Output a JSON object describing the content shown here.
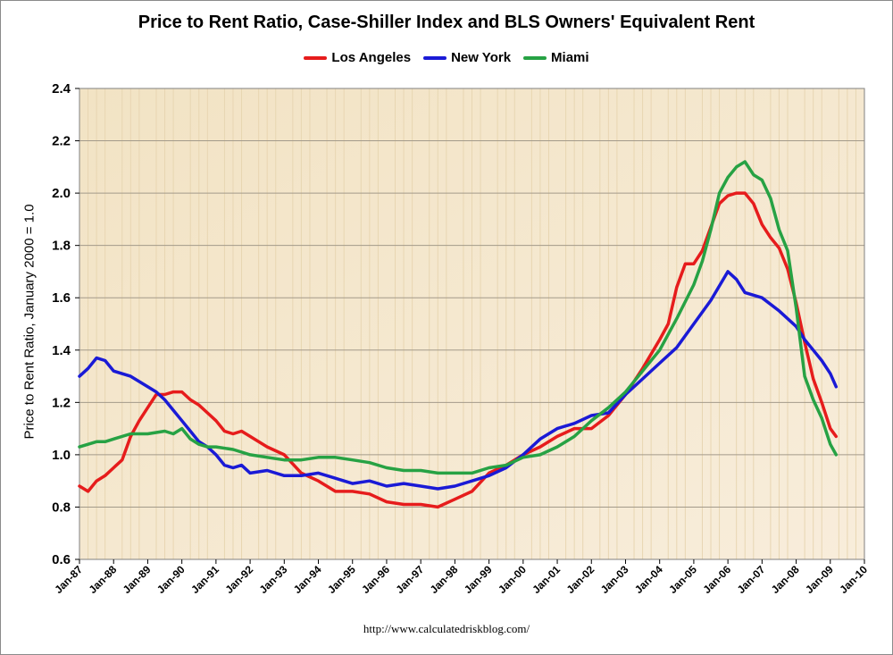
{
  "chart_data": {
    "type": "line",
    "title": "Price to Rent Ratio, Case-Shiller Index and BLS Owners' Equivalent Rent",
    "xlabel": "",
    "ylabel": "Price to Rent Ratio, January 2000 = 1.0",
    "ylim": [
      0.6,
      2.4
    ],
    "yticks": [
      "0.6",
      "0.8",
      "1.0",
      "1.2",
      "1.4",
      "1.6",
      "1.8",
      "2.0",
      "2.2",
      "2.4"
    ],
    "yticks_values": [
      0.6,
      0.8,
      1.0,
      1.2,
      1.4,
      1.6,
      1.8,
      2.0,
      2.2,
      2.4
    ],
    "xlim": [
      1987,
      2010
    ],
    "categories": [
      "Jan-87",
      "Jan-88",
      "Jan-89",
      "Jan-90",
      "Jan-91",
      "Jan-92",
      "Jan-93",
      "Jan-94",
      "Jan-95",
      "Jan-96",
      "Jan-97",
      "Jan-98",
      "Jan-99",
      "Jan-00",
      "Jan-01",
      "Jan-02",
      "Jan-03",
      "Jan-04",
      "Jan-05",
      "Jan-06",
      "Jan-07",
      "Jan-08",
      "Jan-09",
      "Jan-10"
    ],
    "grid": true,
    "legend_position": "top",
    "source": "http://www.calculatedriskblog.com/",
    "series": [
      {
        "name": "Los Angeles",
        "color": "#e61c1c",
        "x": [
          1987.0,
          1987.25,
          1987.5,
          1987.75,
          1988.0,
          1988.25,
          1988.5,
          1988.75,
          1989.0,
          1989.25,
          1989.5,
          1989.75,
          1990.0,
          1990.25,
          1990.5,
          1990.75,
          1991.0,
          1991.25,
          1991.5,
          1991.75,
          1992.0,
          1992.5,
          1993.0,
          1993.5,
          1994.0,
          1994.5,
          1995.0,
          1995.5,
          1996.0,
          1996.5,
          1997.0,
          1997.5,
          1998.0,
          1998.5,
          1999.0,
          1999.5,
          2000.0,
          2000.5,
          2001.0,
          2001.5,
          2002.0,
          2002.5,
          2003.0,
          2003.5,
          2004.0,
          2004.25,
          2004.5,
          2004.75,
          2005.0,
          2005.25,
          2005.5,
          2005.75,
          2006.0,
          2006.25,
          2006.5,
          2006.75,
          2007.0,
          2007.25,
          2007.5,
          2007.75,
          2008.0,
          2008.25,
          2008.5,
          2008.75,
          2009.0,
          2009.17
        ],
        "values": [
          0.88,
          0.86,
          0.9,
          0.92,
          0.95,
          0.98,
          1.07,
          1.13,
          1.18,
          1.23,
          1.23,
          1.24,
          1.24,
          1.21,
          1.19,
          1.16,
          1.13,
          1.09,
          1.08,
          1.09,
          1.07,
          1.03,
          1.0,
          0.93,
          0.9,
          0.86,
          0.86,
          0.85,
          0.82,
          0.81,
          0.81,
          0.8,
          0.83,
          0.86,
          0.93,
          0.96,
          1.0,
          1.03,
          1.07,
          1.1,
          1.1,
          1.15,
          1.23,
          1.33,
          1.44,
          1.5,
          1.64,
          1.73,
          1.73,
          1.78,
          1.87,
          1.96,
          1.99,
          2.0,
          2.0,
          1.96,
          1.88,
          1.83,
          1.79,
          1.71,
          1.58,
          1.43,
          1.29,
          1.2,
          1.1,
          1.07
        ]
      },
      {
        "name": "New York",
        "color": "#1a1ad6",
        "x": [
          1987.0,
          1987.25,
          1987.5,
          1987.75,
          1988.0,
          1988.5,
          1989.0,
          1989.25,
          1989.5,
          1989.75,
          1990.0,
          1990.25,
          1990.5,
          1990.75,
          1991.0,
          1991.25,
          1991.5,
          1991.75,
          1992.0,
          1992.5,
          1993.0,
          1993.5,
          1994.0,
          1994.5,
          1995.0,
          1995.5,
          1996.0,
          1996.5,
          1997.0,
          1997.5,
          1998.0,
          1998.5,
          1999.0,
          1999.5,
          2000.0,
          2000.5,
          2001.0,
          2001.5,
          2002.0,
          2002.5,
          2003.0,
          2003.5,
          2004.0,
          2004.5,
          2005.0,
          2005.5,
          2006.0,
          2006.25,
          2006.5,
          2006.75,
          2007.0,
          2007.5,
          2008.0,
          2008.25,
          2008.5,
          2008.75,
          2009.0,
          2009.17
        ],
        "values": [
          1.3,
          1.33,
          1.37,
          1.36,
          1.32,
          1.3,
          1.26,
          1.24,
          1.21,
          1.17,
          1.13,
          1.09,
          1.05,
          1.03,
          1.0,
          0.96,
          0.95,
          0.96,
          0.93,
          0.94,
          0.92,
          0.92,
          0.93,
          0.91,
          0.89,
          0.9,
          0.88,
          0.89,
          0.88,
          0.87,
          0.88,
          0.9,
          0.92,
          0.95,
          1.0,
          1.06,
          1.1,
          1.12,
          1.15,
          1.16,
          1.23,
          1.29,
          1.35,
          1.41,
          1.5,
          1.59,
          1.7,
          1.67,
          1.62,
          1.61,
          1.6,
          1.55,
          1.49,
          1.44,
          1.4,
          1.36,
          1.31,
          1.26
        ]
      },
      {
        "name": "Miami",
        "color": "#27a244",
        "x": [
          1987.0,
          1987.25,
          1987.5,
          1987.75,
          1988.0,
          1988.5,
          1989.0,
          1989.5,
          1989.75,
          1990.0,
          1990.25,
          1990.5,
          1990.75,
          1991.0,
          1991.5,
          1992.0,
          1992.5,
          1993.0,
          1993.5,
          1994.0,
          1994.5,
          1995.0,
          1995.5,
          1996.0,
          1996.5,
          1997.0,
          1997.5,
          1998.0,
          1998.5,
          1999.0,
          1999.5,
          2000.0,
          2000.5,
          2001.0,
          2001.5,
          2002.0,
          2002.5,
          2003.0,
          2003.5,
          2004.0,
          2004.5,
          2005.0,
          2005.25,
          2005.5,
          2005.75,
          2006.0,
          2006.25,
          2006.5,
          2006.75,
          2007.0,
          2007.25,
          2007.5,
          2007.75,
          2008.0,
          2008.25,
          2008.5,
          2008.75,
          2009.0,
          2009.17
        ],
        "values": [
          1.03,
          1.04,
          1.05,
          1.05,
          1.06,
          1.08,
          1.08,
          1.09,
          1.08,
          1.1,
          1.06,
          1.04,
          1.03,
          1.03,
          1.02,
          1.0,
          0.99,
          0.98,
          0.98,
          0.99,
          0.99,
          0.98,
          0.97,
          0.95,
          0.94,
          0.94,
          0.93,
          0.93,
          0.93,
          0.95,
          0.96,
          0.99,
          1.0,
          1.03,
          1.07,
          1.13,
          1.18,
          1.24,
          1.32,
          1.4,
          1.52,
          1.65,
          1.74,
          1.86,
          2.0,
          2.06,
          2.1,
          2.12,
          2.07,
          2.05,
          1.98,
          1.86,
          1.78,
          1.56,
          1.3,
          1.21,
          1.14,
          1.04,
          1.0
        ]
      }
    ]
  }
}
